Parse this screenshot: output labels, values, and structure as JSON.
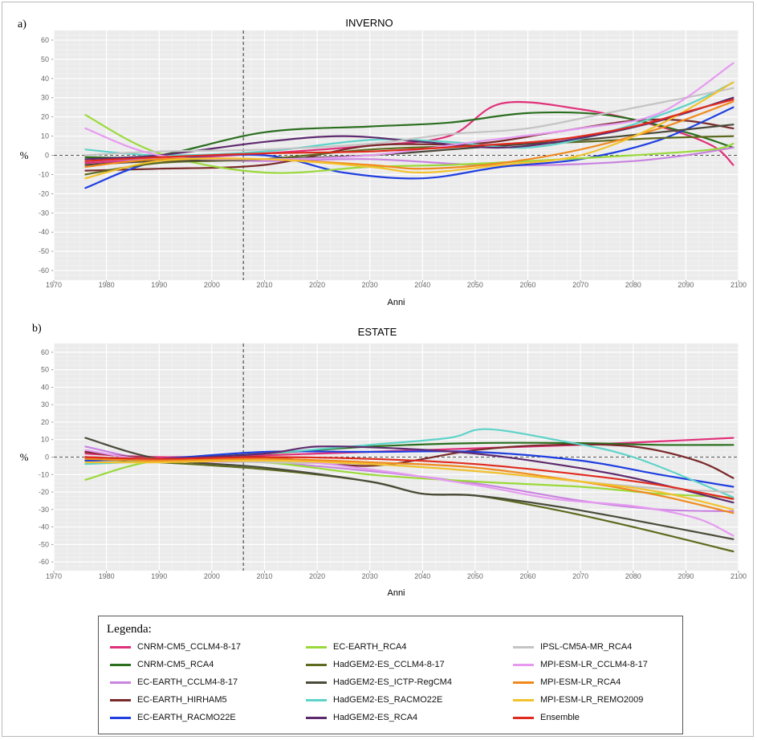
{
  "chart_data": [
    {
      "type": "line",
      "panel": "a)",
      "title": "INVERNO",
      "xlabel": "Anni",
      "ylabel": "%",
      "xlim": [
        1970,
        2100
      ],
      "ylim": [
        -65,
        65
      ],
      "xticks": [
        1970,
        1980,
        1990,
        2000,
        2010,
        2020,
        2030,
        2040,
        2050,
        2060,
        2070,
        2080,
        2090,
        2100
      ],
      "yticks": [
        -60,
        -50,
        -40,
        -30,
        -20,
        -10,
        0,
        10,
        20,
        30,
        40,
        50,
        60
      ],
      "reference_vline": 2006,
      "reference_hline": 0,
      "grid": true,
      "series": [
        {
          "name": "CNRM-CM5_CCLM4-8-17",
          "x": [
            1976,
            1990,
            2010,
            2030,
            2045,
            2055,
            2070,
            2085,
            2095,
            2099
          ],
          "y": [
            -4,
            -2,
            1,
            5,
            10,
            27,
            24,
            15,
            5,
            -5
          ]
        },
        {
          "name": "CNRM-CM5_RCA4",
          "x": [
            1976,
            1990,
            2010,
            2030,
            2045,
            2060,
            2075,
            2090,
            2099
          ],
          "y": [
            -1,
            0,
            12,
            15,
            17,
            22,
            21,
            12,
            4
          ]
        },
        {
          "name": "EC-EARTH_CCLM4-8-17",
          "x": [
            1976,
            1990,
            2010,
            2030,
            2050,
            2065,
            2080,
            2090,
            2099
          ],
          "y": [
            -3,
            -2,
            -3,
            -2,
            -5,
            -5,
            -3,
            0,
            4
          ]
        },
        {
          "name": "EC-EARTH_HIRHAM5",
          "x": [
            1976,
            1990,
            2010,
            2030,
            2050,
            2065,
            2080,
            2090,
            2099
          ],
          "y": [
            -8,
            -7,
            -5,
            5,
            6,
            12,
            18,
            18,
            14
          ]
        },
        {
          "name": "EC-EARTH_RACMO22E",
          "x": [
            1976,
            1990,
            2010,
            2025,
            2040,
            2055,
            2070,
            2085,
            2099
          ],
          "y": [
            -17,
            -3,
            0,
            -9,
            -12,
            -6,
            -2,
            8,
            25
          ]
        },
        {
          "name": "EC-EARTH_RCA4",
          "x": [
            1976,
            1990,
            2010,
            2030,
            2045,
            2060,
            2080,
            2095,
            2099
          ],
          "y": [
            21,
            1,
            -9,
            -6,
            -5,
            -3,
            0,
            3,
            6
          ]
        },
        {
          "name": "HadGEM2-ES_CCLM4-8-17",
          "x": [
            1976,
            1990,
            2010,
            2030,
            2050,
            2070,
            2085,
            2099
          ],
          "y": [
            -10,
            -4,
            -2,
            3,
            5,
            7,
            9,
            10
          ]
        },
        {
          "name": "HadGEM2-ES_ICTP-RegCM4",
          "x": [
            1976,
            1990,
            2010,
            2030,
            2050,
            2070,
            2085,
            2099
          ],
          "y": [
            -5,
            -3,
            -2,
            0,
            4,
            8,
            12,
            16
          ]
        },
        {
          "name": "HadGEM2-ES_RACMO22E",
          "x": [
            1976,
            1990,
            2010,
            2030,
            2045,
            2060,
            2075,
            2090,
            2099
          ],
          "y": [
            3,
            0,
            2,
            8,
            7,
            4,
            12,
            26,
            38
          ]
        },
        {
          "name": "HadGEM2-ES_RCA4",
          "x": [
            1976,
            1990,
            2010,
            2025,
            2040,
            2055,
            2070,
            2085,
            2099
          ],
          "y": [
            -2,
            0,
            7,
            10,
            7,
            4,
            9,
            18,
            30
          ]
        },
        {
          "name": "IPSL-CM5A-MR_RCA4",
          "x": [
            1976,
            1990,
            2010,
            2030,
            2045,
            2060,
            2075,
            2090,
            2099
          ],
          "y": [
            0,
            2,
            3,
            6,
            11,
            14,
            22,
            30,
            35
          ]
        },
        {
          "name": "MPI-ESM-LR_CCLM4-8-17",
          "x": [
            1976,
            1990,
            2010,
            2030,
            2050,
            2070,
            2085,
            2099
          ],
          "y": [
            14,
            0,
            -2,
            0,
            7,
            14,
            22,
            48
          ]
        },
        {
          "name": "MPI-ESM-LR_RCA4",
          "x": [
            1976,
            1990,
            2010,
            2030,
            2040,
            2055,
            2070,
            2085,
            2099
          ],
          "y": [
            -6,
            -2,
            -2,
            -5,
            -7,
            -4,
            3,
            14,
            28
          ]
        },
        {
          "name": "MPI-ESM-LR_REMO2009",
          "x": [
            1976,
            1990,
            2010,
            2030,
            2040,
            2055,
            2070,
            2085,
            2099
          ],
          "y": [
            -12,
            -3,
            -2,
            -6,
            -9,
            -5,
            0,
            16,
            38
          ]
        },
        {
          "name": "Ensemble",
          "x": [
            1976,
            1990,
            2010,
            2030,
            2050,
            2065,
            2080,
            2092,
            2099
          ],
          "y": [
            -3,
            -1,
            1,
            2,
            5,
            8,
            15,
            24,
            29
          ]
        }
      ]
    },
    {
      "type": "line",
      "panel": "b)",
      "title": "ESTATE",
      "xlabel": "Anni",
      "ylabel": "%",
      "xlim": [
        1970,
        2100
      ],
      "ylim": [
        -65,
        65
      ],
      "xticks": [
        1970,
        1980,
        1990,
        2000,
        2010,
        2020,
        2030,
        2040,
        2050,
        2060,
        2070,
        2080,
        2090,
        2100
      ],
      "yticks": [
        -60,
        -50,
        -40,
        -30,
        -20,
        -10,
        0,
        10,
        20,
        30,
        40,
        50,
        60
      ],
      "reference_vline": 2006,
      "reference_hline": 0,
      "grid": true,
      "series": [
        {
          "name": "CNRM-CM5_CCLM4-8-17",
          "x": [
            1976,
            1990,
            2010,
            2030,
            2050,
            2070,
            2085,
            2099
          ],
          "y": [
            2,
            0,
            1,
            3,
            5,
            7,
            9,
            11
          ]
        },
        {
          "name": "CNRM-CM5_RCA4",
          "x": [
            1976,
            1990,
            2010,
            2030,
            2050,
            2070,
            2085,
            2099
          ],
          "y": [
            0,
            -1,
            2,
            6,
            8,
            8,
            7,
            7
          ]
        },
        {
          "name": "EC-EARTH_CCLM4-8-17",
          "x": [
            1976,
            1990,
            2010,
            2030,
            2050,
            2070,
            2085,
            2099
          ],
          "y": [
            6,
            -2,
            -3,
            -8,
            -15,
            -25,
            -30,
            -31
          ]
        },
        {
          "name": "EC-EARTH_HIRHAM5",
          "x": [
            1976,
            1990,
            2010,
            2030,
            2050,
            2065,
            2080,
            2092,
            2099
          ],
          "y": [
            3,
            -1,
            0,
            -5,
            4,
            7,
            6,
            -2,
            -12
          ]
        },
        {
          "name": "EC-EARTH_RACMO22E",
          "x": [
            1976,
            1990,
            2010,
            2030,
            2050,
            2070,
            2085,
            2099
          ],
          "y": [
            -2,
            -1,
            3,
            3,
            3,
            -2,
            -10,
            -17
          ]
        },
        {
          "name": "EC-EARTH_RCA4",
          "x": [
            1976,
            1990,
            2010,
            2030,
            2050,
            2070,
            2085,
            2099
          ],
          "y": [
            -13,
            -2,
            -3,
            -10,
            -14,
            -17,
            -21,
            -23
          ]
        },
        {
          "name": "HadGEM2-ES_CCLM4-8-17",
          "x": [
            1976,
            1990,
            2010,
            2030,
            2040,
            2050,
            2065,
            2080,
            2099
          ],
          "y": [
            -1,
            -3,
            -7,
            -14,
            -21,
            -22,
            -30,
            -40,
            -54
          ]
        },
        {
          "name": "HadGEM2-ES_ICTP-RegCM4",
          "x": [
            1976,
            1990,
            2010,
            2030,
            2040,
            2050,
            2065,
            2080,
            2099
          ],
          "y": [
            11,
            -1,
            -6,
            -14,
            -21,
            -22,
            -28,
            -36,
            -47
          ]
        },
        {
          "name": "HadGEM2-ES_RACMO22E",
          "x": [
            1976,
            1990,
            2010,
            2030,
            2045,
            2052,
            2065,
            2080,
            2099
          ],
          "y": [
            -4,
            -2,
            2,
            7,
            11,
            16,
            10,
            0,
            -23
          ]
        },
        {
          "name": "HadGEM2-ES_RCA4",
          "x": [
            1976,
            1990,
            2010,
            2020,
            2035,
            2050,
            2065,
            2080,
            2099
          ],
          "y": [
            0,
            -1,
            2,
            6,
            5,
            2,
            -4,
            -12,
            -26
          ]
        },
        {
          "name": "IPSL-CM5A-MR_RCA4",
          "x": [
            1976,
            1990,
            2010,
            2030,
            2050,
            2070,
            2085,
            2099
          ],
          "y": [
            0,
            -1,
            -3,
            -4,
            -8,
            -14,
            -18,
            -20
          ]
        },
        {
          "name": "MPI-ESM-LR_CCLM4-8-17",
          "x": [
            1976,
            1990,
            2010,
            2030,
            2050,
            2065,
            2080,
            2092,
            2099
          ],
          "y": [
            4,
            -2,
            -1,
            -7,
            -16,
            -24,
            -28,
            -35,
            -45
          ]
        },
        {
          "name": "MPI-ESM-LR_RCA4",
          "x": [
            1976,
            1990,
            2010,
            2030,
            2050,
            2070,
            2085,
            2099
          ],
          "y": [
            -1,
            -2,
            -1,
            -3,
            -6,
            -14,
            -22,
            -32
          ]
        },
        {
          "name": "MPI-ESM-LR_REMO2009",
          "x": [
            1976,
            1990,
            2010,
            2030,
            2050,
            2070,
            2085,
            2099
          ],
          "y": [
            -3,
            -3,
            -2,
            -4,
            -8,
            -14,
            -20,
            -30
          ]
        },
        {
          "name": "Ensemble",
          "x": [
            1976,
            1990,
            2010,
            2030,
            2050,
            2070,
            2085,
            2099
          ],
          "y": [
            0,
            -1,
            0,
            -1,
            -4,
            -10,
            -16,
            -24
          ]
        }
      ]
    }
  ],
  "legend": {
    "title": "Legenda:",
    "placement": "bottom",
    "items": [
      {
        "label": "CNRM-CM5_CCLM4-8-17",
        "color": "#e0307a"
      },
      {
        "label": "CNRM-CM5_RCA4",
        "color": "#2a6e1e"
      },
      {
        "label": "EC-EARTH_CCLM4-8-17",
        "color": "#c983e0"
      },
      {
        "label": "EC-EARTH_HIRHAM5",
        "color": "#7a2a2a"
      },
      {
        "label": "EC-EARTH_RACMO22E",
        "color": "#1f3fe0"
      },
      {
        "label": "EC-EARTH_RCA4",
        "color": "#9ad93a"
      },
      {
        "label": "HadGEM2-ES_CCLM4-8-17",
        "color": "#5e6a1e"
      },
      {
        "label": "HadGEM2-ES_ICTP-RegCM4",
        "color": "#4a4a3a"
      },
      {
        "label": "HadGEM2-ES_RACMO22E",
        "color": "#5ed3c8"
      },
      {
        "label": "HadGEM2-ES_RCA4",
        "color": "#5e2a6e"
      },
      {
        "label": "IPSL-CM5A-MR_RCA4",
        "color": "#c4c4c4"
      },
      {
        "label": "MPI-ESM-LR_CCLM4-8-17",
        "color": "#e59af0"
      },
      {
        "label": "MPI-ESM-LR_RCA4",
        "color": "#f08a1e"
      },
      {
        "label": "MPI-ESM-LR_REMO2009",
        "color": "#f2c22e"
      },
      {
        "label": "Ensemble",
        "color": "#e02a1e"
      }
    ]
  }
}
